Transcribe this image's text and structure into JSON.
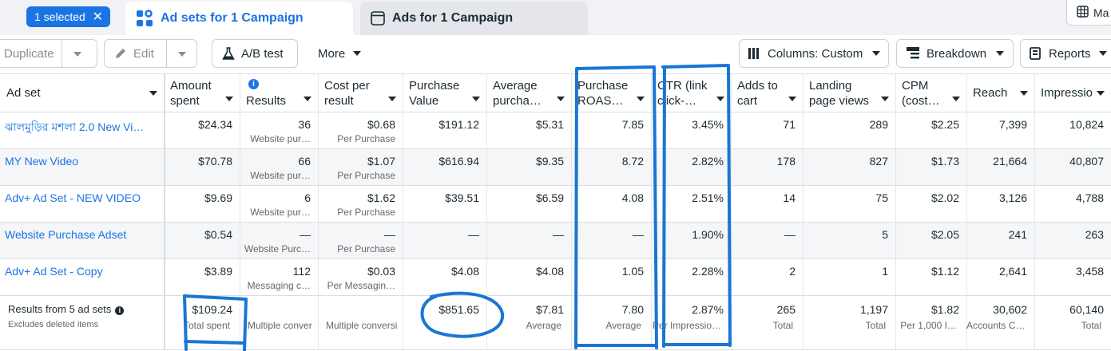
{
  "selection": {
    "label": "1 selected",
    "close": "✕"
  },
  "tabs": [
    {
      "label": "Ad sets for 1 Campaign"
    },
    {
      "label": "Ads for 1 Campaign"
    },
    {
      "label": "Ma"
    }
  ],
  "toolbar": {
    "duplicate": "Duplicate",
    "edit": "Edit",
    "ab_test": "A/B test",
    "more": "More",
    "columns": "Columns: Custom",
    "breakdown": "Breakdown",
    "reports": "Reports"
  },
  "columns": [
    [
      "Ad set",
      ""
    ],
    [
      "Amount",
      "spent"
    ],
    [
      "",
      "Results"
    ],
    [
      "Cost per",
      "result"
    ],
    [
      "Purchase",
      "Value"
    ],
    [
      "Average",
      "purcha…"
    ],
    [
      "Purchase",
      "ROAS…"
    ],
    [
      "CTR (link",
      "click-…"
    ],
    [
      "Adds to",
      "cart"
    ],
    [
      "Landing",
      "page views"
    ],
    [
      "CPM",
      "(cost…"
    ],
    [
      "Reach",
      ""
    ],
    [
      "Impressio",
      ""
    ]
  ],
  "rows": [
    {
      "name": "ঝালমুড়ির মশলা 2.0 New Vi…",
      "amount": "$24.34",
      "results": "36",
      "results_sub": "Website pur…",
      "cost": "$0.68",
      "cost_sub": "Per Purchase",
      "purchase_value": "$191.12",
      "avg": "$5.31",
      "roas": "7.85",
      "ctr": "3.45%",
      "adds": "71",
      "landing": "289",
      "cpm": "$2.25",
      "reach": "7,399",
      "impr": "10,824"
    },
    {
      "name": "MY New Video",
      "amount": "$70.78",
      "results": "66",
      "results_sub": "Website pur…",
      "cost": "$1.07",
      "cost_sub": "Per Purchase",
      "purchase_value": "$616.94",
      "avg": "$9.35",
      "roas": "8.72",
      "ctr": "2.82%",
      "adds": "178",
      "landing": "827",
      "cpm": "$1.73",
      "reach": "21,664",
      "impr": "40,807"
    },
    {
      "name": "Adv+ Ad Set - NEW VIDEO",
      "amount": "$9.69",
      "results": "6",
      "results_sub": "Website pur…",
      "cost": "$1.62",
      "cost_sub": "Per Purchase",
      "purchase_value": "$39.51",
      "avg": "$6.59",
      "roas": "4.08",
      "ctr": "2.51%",
      "adds": "14",
      "landing": "75",
      "cpm": "$2.02",
      "reach": "3,126",
      "impr": "4,788"
    },
    {
      "name": "Website Purchase Adset",
      "amount": "$0.54",
      "results": "—",
      "results_sub": "Website Purc…",
      "cost": "—",
      "cost_sub": "Per Purchase",
      "purchase_value": "—",
      "avg": "—",
      "roas": "—",
      "ctr": "1.90%",
      "adds": "—",
      "landing": "5",
      "cpm": "$2.05",
      "reach": "241",
      "impr": "263"
    },
    {
      "name": "Adv+ Ad Set - Copy",
      "amount": "$3.89",
      "results": "112",
      "results_sub": "Messaging c…",
      "cost": "$0.03",
      "cost_sub": "Per Messagin…",
      "purchase_value": "$4.08",
      "avg": "$4.08",
      "roas": "1.05",
      "ctr": "2.28%",
      "adds": "2",
      "landing": "1",
      "cpm": "$1.12",
      "reach": "2,641",
      "impr": "3,458"
    }
  ],
  "summary": {
    "label": "Results from 5 ad sets",
    "label_sub": "Excludes deleted items",
    "amount": "$109.24",
    "amount_sub": "Total spent",
    "results_sub": "Multiple conver",
    "cost_sub": "Multiple conversi",
    "purchase_value": "$851.65",
    "avg": "$7.81",
    "avg_sub": "Average",
    "roas": "7.80",
    "roas_sub": "Average",
    "ctr": "2.87%",
    "ctr_sub": "Per Impressio…",
    "adds": "265",
    "adds_sub": "Total",
    "landing": "1,197",
    "landing_sub": "Total",
    "cpm": "$1.82",
    "cpm_sub": "Per 1,000 I…",
    "reach": "30,602",
    "reach_sub": "Accounts C…",
    "impr": "60,140",
    "impr_sub": "Total"
  },
  "colors": {
    "accent": "#1b74e4",
    "annotation": "#1976d2"
  }
}
